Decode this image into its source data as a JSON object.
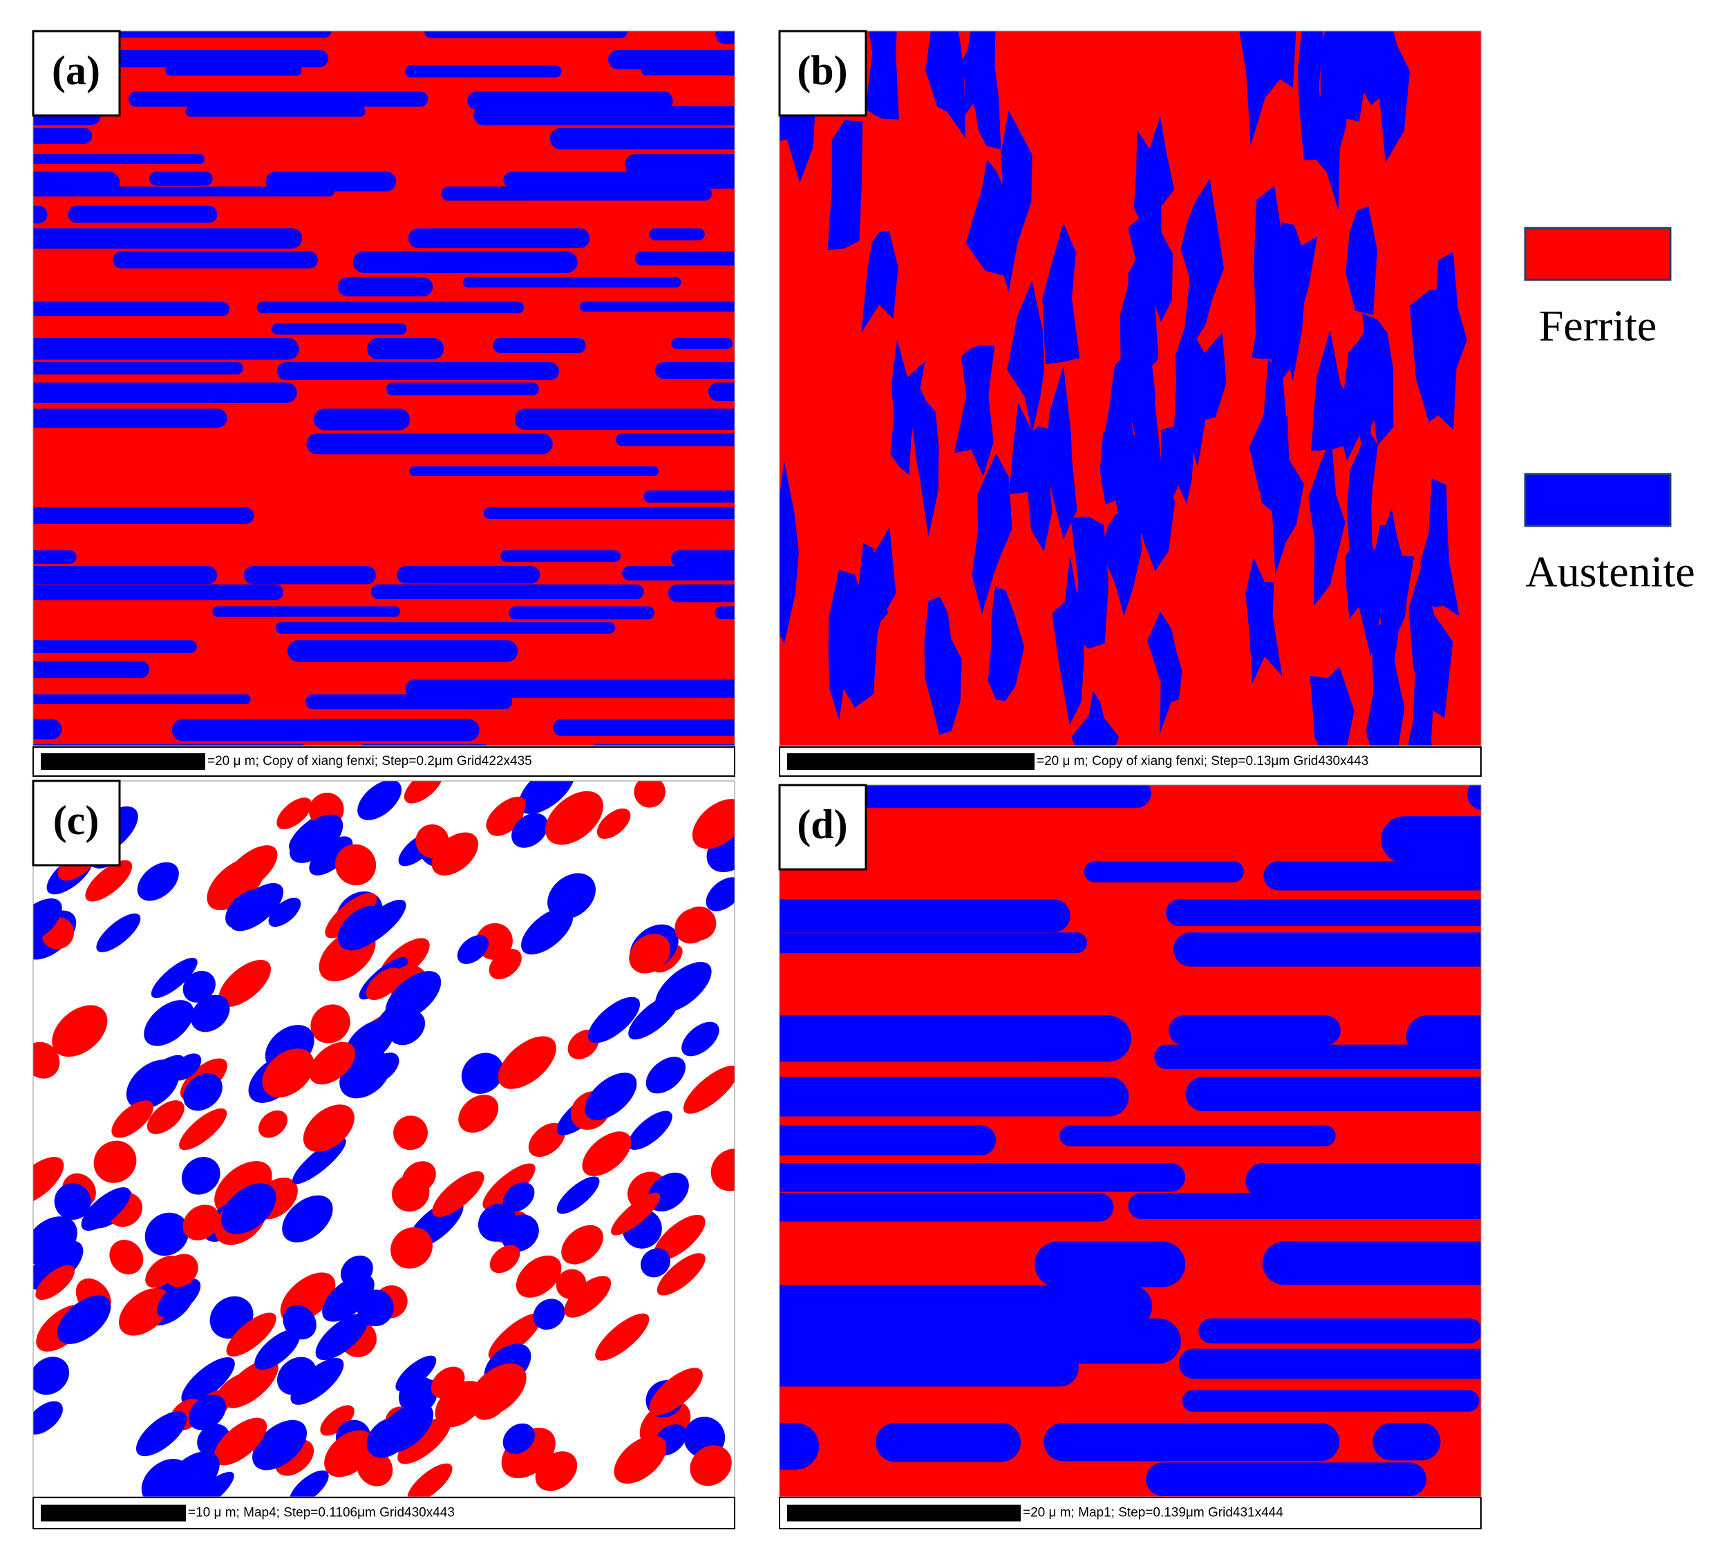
{
  "panels": [
    {
      "label": "(a)",
      "caption": "=20 μ m; Copy of xiang fenxi; Step=0.2μm Grid422x435"
    },
    {
      "label": "(b)",
      "caption": "=20 μ m; Copy of xiang fenxi; Step=0.13μm Grid430x443"
    },
    {
      "label": "(c)",
      "caption": "=10 μ m; Map4; Step=0.1106μm Grid430x443"
    },
    {
      "label": "(d)",
      "caption": "=20 μ m; Map1; Step=0.139μm Grid431x444"
    }
  ],
  "legend": [
    {
      "label": "Ferrite",
      "color": "#ff0000"
    },
    {
      "label": "Austenite",
      "color": "#0000ff"
    }
  ]
}
